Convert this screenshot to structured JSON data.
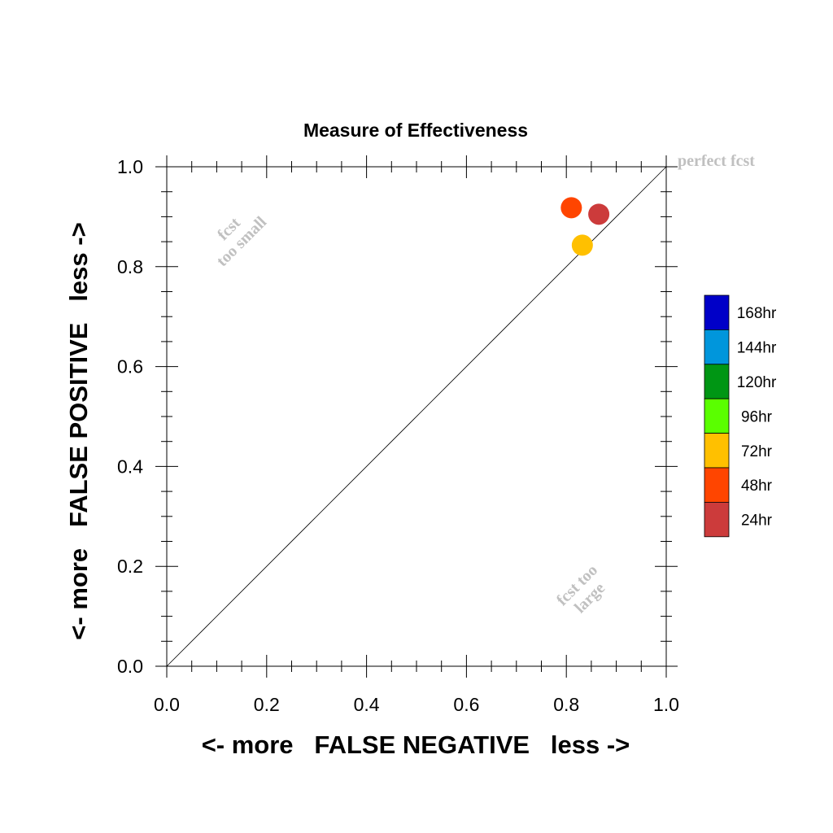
{
  "chart_data": {
    "type": "scatter",
    "title": "Measure of Effectiveness",
    "xlabel": "<- more   FALSE NEGATIVE   less ->",
    "ylabel": "<- more   FALSE POSITIVE   less ->",
    "xlim": [
      0,
      1
    ],
    "ylim": [
      0,
      1
    ],
    "x_ticks": [
      "0.0",
      "0.2",
      "0.4",
      "0.6",
      "0.8",
      "1.0"
    ],
    "y_ticks": [
      "0.0",
      "0.2",
      "0.4",
      "0.6",
      "0.8",
      "1.0"
    ],
    "grid": false,
    "reference_line": {
      "from": [
        0,
        0
      ],
      "to": [
        1,
        1
      ]
    },
    "series": [
      {
        "name": "24hr",
        "color": "#cc3b3b",
        "x": [
          0.865
        ],
        "y": [
          0.905
        ]
      },
      {
        "name": "48hr",
        "color": "#ff4500",
        "x": [
          0.81
        ],
        "y": [
          0.918
        ]
      },
      {
        "name": "72hr",
        "color": "#ffc000",
        "x": [
          0.832
        ],
        "y": [
          0.843
        ]
      }
    ],
    "legend": {
      "placement": "right",
      "entries": [
        {
          "label": "168hr",
          "color": "#0000c8"
        },
        {
          "label": "144hr",
          "color": "#0096dc"
        },
        {
          "label": "120hr",
          "color": "#009614"
        },
        {
          "label": "96hr",
          "color": "#5aff00"
        },
        {
          "label": "72hr",
          "color": "#ffc000"
        },
        {
          "label": "48hr",
          "color": "#ff4500"
        },
        {
          "label": "24hr",
          "color": "#cc3b3b"
        }
      ]
    },
    "annotations": {
      "perfect": "perfect fcst",
      "too_small": [
        "fcst",
        "too small"
      ],
      "too_large": [
        "fcst too",
        "large"
      ]
    }
  }
}
